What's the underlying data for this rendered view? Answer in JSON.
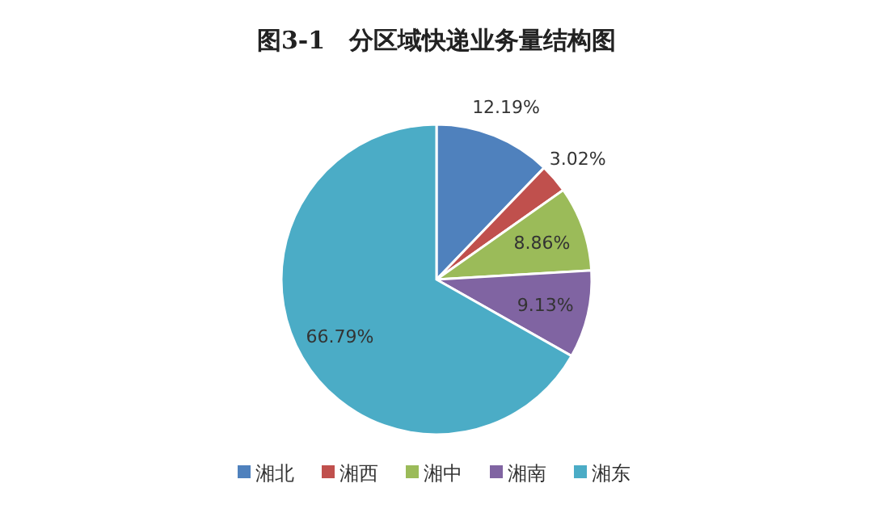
{
  "chart_data": {
    "type": "pie",
    "title": "图3-1　分区域快递业务量结构图",
    "categories": [
      "湘北",
      "湘西",
      "湘中",
      "湘南",
      "湘东"
    ],
    "values": [
      12.19,
      3.02,
      8.86,
      9.13,
      66.79
    ],
    "colors": [
      "#4f81bd",
      "#c0504d",
      "#9bbb59",
      "#8064a2",
      "#4bacc6"
    ],
    "value_labels": [
      "12.19%",
      "3.02%",
      "8.86%",
      "9.13%",
      "66.79%"
    ],
    "legend": "bottom"
  }
}
